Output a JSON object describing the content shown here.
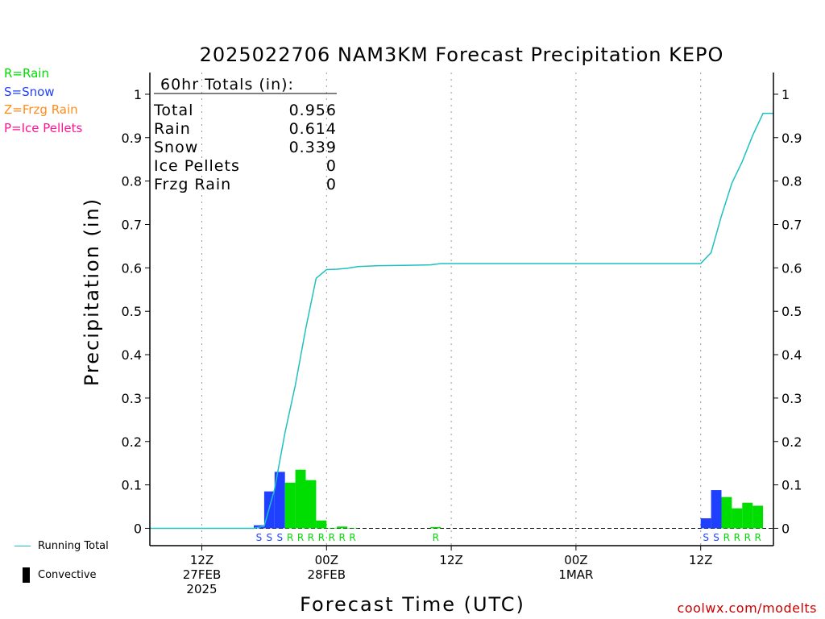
{
  "chart_data": {
    "type": "bar",
    "title": "2025022706 NAM3KM Forecast Precipitation KEPO",
    "ylabel": "Precipitation (in)",
    "xlabel": "Forecast Time (UTC)",
    "ylim": [
      -0.04,
      1.05
    ],
    "y_ticks": [
      0,
      0.1,
      0.2,
      0.3,
      0.4,
      0.5,
      0.6,
      0.7,
      0.8,
      0.9,
      1
    ],
    "y_tick_labels": [
      "0",
      "0.1",
      "0.2",
      "0.3",
      "0.4",
      "0.5",
      "0.6",
      "0.7",
      "0.8",
      "0.9",
      "1"
    ],
    "x_range_hours": [
      1,
      61
    ],
    "x_ticks": [
      {
        "hour": 6,
        "lines": [
          "12Z",
          "27FEB",
          "2025"
        ]
      },
      {
        "hour": 18,
        "lines": [
          "00Z",
          "28FEB"
        ]
      },
      {
        "hour": 30,
        "lines": [
          "12Z"
        ]
      },
      {
        "hour": 42,
        "lines": [
          "00Z",
          "1MAR"
        ]
      },
      {
        "hour": 54,
        "lines": [
          "12Z"
        ]
      }
    ],
    "bar_width_hours": 1,
    "bars": [
      {
        "hour": 12,
        "value": 0.007,
        "type": "S"
      },
      {
        "hour": 13,
        "value": 0.085,
        "type": "S"
      },
      {
        "hour": 14,
        "value": 0.13,
        "type": "S"
      },
      {
        "hour": 15,
        "value": 0.105,
        "type": "R"
      },
      {
        "hour": 16,
        "value": 0.135,
        "type": "R"
      },
      {
        "hour": 17,
        "value": 0.111,
        "type": "R"
      },
      {
        "hour": 18,
        "value": 0.018,
        "type": "R"
      },
      {
        "hour": 19,
        "value": 0.001,
        "type": "R"
      },
      {
        "hour": 20,
        "value": 0.004,
        "type": "R"
      },
      {
        "hour": 21,
        "value": 0.001,
        "type": "R"
      },
      {
        "hour": 29,
        "value": 0.003,
        "type": "R"
      },
      {
        "hour": 55,
        "value": 0.023,
        "type": "S"
      },
      {
        "hour": 56,
        "value": 0.088,
        "type": "S"
      },
      {
        "hour": 57,
        "value": 0.072,
        "type": "R"
      },
      {
        "hour": 58,
        "value": 0.046,
        "type": "R"
      },
      {
        "hour": 59,
        "value": 0.059,
        "type": "R"
      },
      {
        "hour": 60,
        "value": 0.052,
        "type": "R"
      }
    ],
    "running_total": {
      "name": "Running Total",
      "x": [
        1,
        11,
        12,
        13,
        14,
        15,
        16,
        17,
        18,
        19,
        20,
        21,
        23,
        26,
        28,
        29,
        54,
        55,
        56,
        57,
        58,
        59,
        60,
        61
      ],
      "y": [
        0,
        0,
        0.005,
        0.09,
        0.22,
        0.33,
        0.46,
        0.576,
        0.596,
        0.597,
        0.599,
        0.603,
        0.605,
        0.606,
        0.607,
        0.61,
        0.61,
        0.635,
        0.72,
        0.795,
        0.845,
        0.905,
        0.956,
        0.956
      ]
    },
    "totals_box": {
      "header": "60hr Totals (in):",
      "rows": [
        {
          "label": "Total",
          "value": "0.956"
        },
        {
          "label": "Rain",
          "value": "0.614"
        },
        {
          "label": "Snow",
          "value": "0.339"
        },
        {
          "label": "Ice Pellets",
          "value": "0"
        },
        {
          "label": "Frzg Rain",
          "value": "0"
        }
      ]
    }
  },
  "colors": {
    "rain": "#00dd00",
    "snow": "#2040ff",
    "freezing_rain": "#ff8c1a",
    "ice_pellets": "#ff1493",
    "running_total": "#20c0c0",
    "convective": "#000000",
    "watermark": "#cc0000"
  },
  "type_legend": [
    {
      "text": "R=Rain",
      "color": "#00dd00"
    },
    {
      "text": "S=Snow",
      "color": "#2040ff"
    },
    {
      "text": "Z=Frzg Rain",
      "color": "#ff8c1a"
    },
    {
      "text": "P=Ice Pellets",
      "color": "#ff1493"
    }
  ],
  "bottom_legend": {
    "running_total_label": "Running Total",
    "convective_label": "Convective"
  },
  "watermark": "coolwx.com/modelts"
}
